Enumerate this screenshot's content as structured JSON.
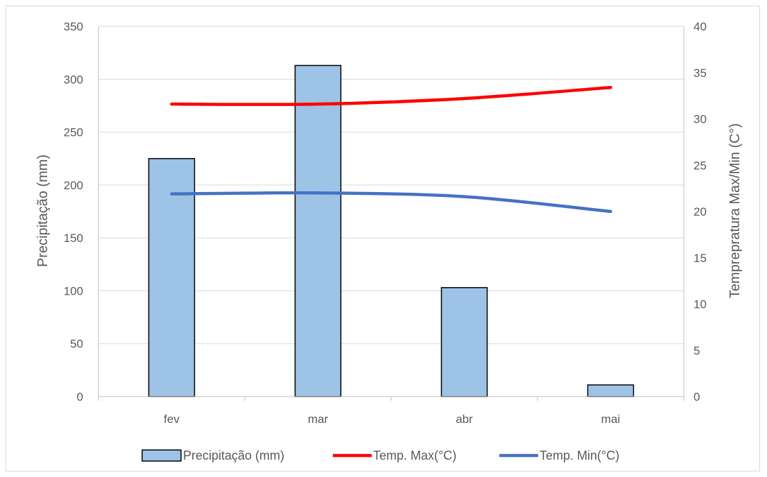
{
  "chart_data": {
    "type": "bar",
    "categories": [
      "fev",
      "mar",
      "abr",
      "mai"
    ],
    "series": [
      {
        "name": "Precipitação (mm)",
        "kind": "bar",
        "axis": "left",
        "values": [
          225,
          313,
          103,
          11
        ],
        "color": "#9dc3e6",
        "stroke": "#000000"
      },
      {
        "name": "Temp. Max(°C)",
        "kind": "line",
        "axis": "right",
        "values": [
          31.6,
          31.6,
          32.2,
          33.4
        ],
        "color": "#ff0000"
      },
      {
        "name": "Temp. Min(°C)",
        "kind": "line",
        "axis": "right",
        "values": [
          21.9,
          22.0,
          21.6,
          20.0
        ],
        "color": "#4472c4"
      }
    ],
    "ylabel": "Precipitação (mm)",
    "y2label": "Temprepratura Max/Min (C°)",
    "ylim": [
      0,
      350
    ],
    "y2lim": [
      0,
      40
    ],
    "yticks": [
      "0",
      "50",
      "100",
      "150",
      "200",
      "250",
      "300",
      "350"
    ],
    "y2ticks": [
      "0",
      "5",
      "10",
      "15",
      "20",
      "25",
      "30",
      "35",
      "40"
    ],
    "grid": true,
    "legend_position": "bottom",
    "gridline_color": "#d9d9d9",
    "axis_color": "#bfbfbf"
  }
}
